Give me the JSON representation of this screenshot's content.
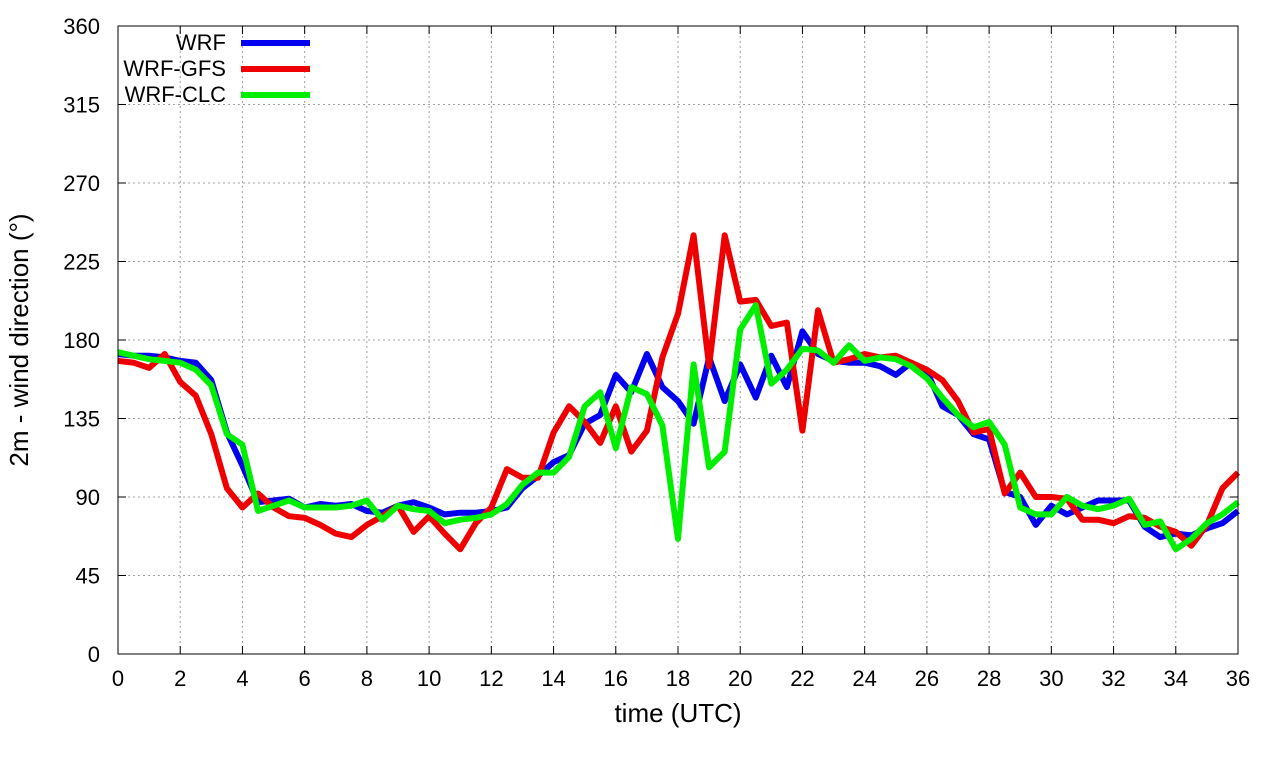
{
  "chart_data": {
    "type": "line",
    "xlabel": "time (UTC)",
    "ylabel": "2m - wind direction (°)",
    "xlim": [
      0,
      36
    ],
    "ylim": [
      0,
      360
    ],
    "xticks": [
      0,
      2,
      4,
      6,
      8,
      10,
      12,
      14,
      16,
      18,
      20,
      22,
      24,
      26,
      28,
      30,
      32,
      34,
      36
    ],
    "yticks": [
      0,
      45,
      90,
      135,
      180,
      225,
      270,
      315,
      360
    ],
    "grid": true,
    "legend_position": "top-left",
    "series": [
      {
        "name": "WRF",
        "color": "#0000ee",
        "x": [
          0,
          0.5,
          1,
          1.5,
          2,
          2.5,
          3,
          3.5,
          4,
          4.5,
          5,
          5.5,
          6,
          6.5,
          7,
          7.5,
          8,
          8.5,
          9,
          9.5,
          10,
          10.5,
          11,
          11.5,
          12,
          12.5,
          13,
          13.5,
          14,
          14.5,
          15,
          15.5,
          16,
          16.5,
          17,
          17.5,
          18,
          18.5,
          19,
          19.5,
          20,
          20.5,
          21,
          21.5,
          22,
          22.5,
          23,
          23.5,
          24,
          24.5,
          25,
          25.5,
          26,
          26.5,
          27,
          27.5,
          28,
          28.5,
          29,
          29.5,
          30,
          30.5,
          31,
          31.5,
          32,
          32.5,
          33,
          33.5,
          34,
          34.5,
          35,
          35.5,
          36
        ],
        "y": [
          172,
          171,
          171,
          170,
          168,
          167,
          157,
          127,
          108,
          87,
          88,
          89,
          84,
          86,
          85,
          86,
          82,
          81,
          85,
          87,
          84,
          80,
          81,
          81,
          82,
          84,
          95,
          102,
          110,
          114,
          132,
          137,
          160,
          150,
          172,
          153,
          145,
          132,
          170,
          145,
          166,
          147,
          171,
          153,
          185,
          172,
          168,
          167,
          167,
          165,
          160,
          167,
          162,
          142,
          137,
          126,
          123,
          93,
          90,
          74,
          85,
          80,
          84,
          88,
          88,
          88,
          73,
          67,
          69,
          68,
          72,
          75,
          82
        ]
      },
      {
        "name": "WRF-GFS",
        "color": "#ee0000",
        "x": [
          0,
          0.5,
          1,
          1.5,
          2,
          2.5,
          3,
          3.5,
          4,
          4.5,
          5,
          5.5,
          6,
          6.5,
          7,
          7.5,
          8,
          8.5,
          9,
          9.5,
          10,
          10.5,
          11,
          11.5,
          12,
          12.5,
          13,
          13.5,
          14,
          14.5,
          15,
          15.5,
          16,
          16.5,
          17,
          17.5,
          18,
          18.5,
          19,
          19.5,
          20,
          20.5,
          21,
          21.5,
          22,
          22.5,
          23,
          23.5,
          24,
          24.5,
          25,
          25.5,
          26,
          26.5,
          27,
          27.5,
          28,
          28.5,
          29,
          29.5,
          30,
          30.5,
          31,
          31.5,
          32,
          32.5,
          33,
          33.5,
          34,
          34.5,
          35,
          35.5,
          36
        ],
        "y": [
          168,
          167,
          164,
          172,
          156,
          148,
          126,
          95,
          84,
          92,
          84,
          79,
          78,
          74,
          69,
          67,
          74,
          79,
          85,
          70,
          79,
          69,
          60,
          75,
          84,
          106,
          101,
          101,
          127,
          142,
          133,
          121,
          142,
          116,
          128,
          170,
          195,
          240,
          165,
          240,
          202,
          203,
          188,
          190,
          128,
          197,
          167,
          169,
          172,
          170,
          171,
          167,
          163,
          157,
          145,
          127,
          129,
          92,
          104,
          90,
          90,
          89,
          77,
          77,
          75,
          79,
          78,
          73,
          70,
          62,
          74,
          95,
          104
        ]
      },
      {
        "name": "WRF-CLC",
        "color": "#00ee00",
        "x": [
          0,
          0.5,
          1,
          1.5,
          2,
          2.5,
          3,
          3.5,
          4,
          4.5,
          5,
          5.5,
          6,
          6.5,
          7,
          7.5,
          8,
          8.5,
          9,
          9.5,
          10,
          10.5,
          11,
          11.5,
          12,
          12.5,
          13,
          13.5,
          14,
          14.5,
          15,
          15.5,
          16,
          16.5,
          17,
          17.5,
          18,
          18.5,
          19,
          19.5,
          20,
          20.5,
          21,
          21.5,
          22,
          22.5,
          23,
          23.5,
          24,
          24.5,
          25,
          25.5,
          26,
          26.5,
          27,
          27.5,
          28,
          28.5,
          29,
          29.5,
          30,
          30.5,
          31,
          31.5,
          32,
          32.5,
          33,
          33.5,
          34,
          34.5,
          35,
          35.5,
          36
        ],
        "y": [
          173,
          171,
          169,
          168,
          167,
          163,
          154,
          126,
          120,
          82,
          85,
          88,
          84,
          84,
          84,
          85,
          88,
          77,
          85,
          83,
          82,
          75,
          77,
          78,
          80,
          86,
          97,
          104,
          104,
          113,
          142,
          150,
          118,
          153,
          149,
          131,
          66,
          166,
          107,
          116,
          186,
          200,
          155,
          163,
          175,
          174,
          167,
          177,
          168,
          170,
          169,
          165,
          158,
          147,
          137,
          130,
          133,
          120,
          84,
          80,
          80,
          90,
          85,
          83,
          85,
          89,
          74,
          76,
          60,
          66,
          75,
          80,
          87
        ]
      }
    ]
  }
}
